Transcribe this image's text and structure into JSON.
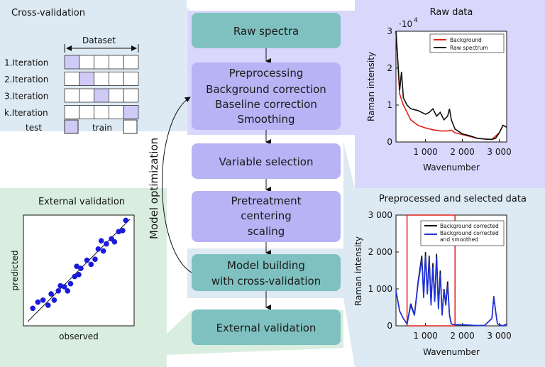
{
  "workflow": {
    "raw_spectra": "Raw spectra",
    "preprocessing": {
      "title": "Preprocessing",
      "steps": [
        "Background correction",
        "Baseline correction",
        "Smoothing"
      ]
    },
    "variable_selection": "Variable selection",
    "pretreatment": {
      "title": "Pretreatment",
      "steps": [
        "centering",
        "scaling"
      ]
    },
    "model_building": [
      "Model building",
      "with cross-validation"
    ],
    "external_validation": "External validation",
    "loop_label": "Model optimization"
  },
  "cross_validation": {
    "title": "Cross-validation",
    "dataset_label": "Dataset",
    "rows": [
      "1.Iteration",
      "2.Iteration",
      "3.Iteration",
      "k.Iteration"
    ],
    "test_column": [
      0,
      1,
      2,
      4
    ],
    "columns": 5,
    "legend_test": "test",
    "legend_train": "train"
  },
  "external_validation_panel": {
    "title": "External validation",
    "xlabel": "observed",
    "ylabel": "predicted"
  },
  "colors": {
    "teal_box": "#7fc1c0",
    "purple_box": "#b7b3f5",
    "purple_panel": "#d9d7fb",
    "green_panel": "#d9eedf",
    "blue_panel": "#dde9f3",
    "marker_blue": "#1a1adb",
    "test_fill": "#cfcaf6"
  },
  "chart_data": [
    {
      "type": "line",
      "title": "Raw data",
      "xlabel": "Wavenumber",
      "ylabel": "Raman intensity",
      "y_multiplier": "·10^4",
      "xlim": [
        200,
        3200
      ],
      "ylim": [
        0,
        3
      ],
      "xticks": [
        "1 000",
        "2 000",
        "3 000"
      ],
      "yticks": [
        "0",
        "1",
        "2",
        "3"
      ],
      "legend": "top-right",
      "series": [
        {
          "name": "Background",
          "color": "#e0201b",
          "x": [
            200,
            300,
            400,
            600,
            800,
            1000,
            1200,
            1400,
            1600,
            1700,
            1800,
            2000,
            2200,
            2400,
            2600,
            2800,
            3000,
            3100,
            3200
          ],
          "y": [
            3.0,
            1.3,
            1.0,
            0.6,
            0.45,
            0.38,
            0.33,
            0.3,
            0.3,
            0.32,
            0.25,
            0.2,
            0.15,
            0.1,
            0.08,
            0.07,
            0.25,
            0.45,
            0.4
          ]
        },
        {
          "name": "Raw spectrum",
          "color": "#111111",
          "x": [
            200,
            300,
            350,
            400,
            500,
            600,
            800,
            1000,
            1100,
            1200,
            1300,
            1400,
            1500,
            1600,
            1650,
            1700,
            1800,
            2000,
            2200,
            2400,
            2600,
            2800,
            2900,
            3000,
            3100,
            3200
          ],
          "y": [
            3.0,
            1.4,
            1.9,
            1.2,
            1.0,
            0.9,
            0.85,
            0.75,
            0.8,
            0.9,
            0.7,
            0.8,
            0.6,
            0.7,
            0.9,
            0.6,
            0.35,
            0.22,
            0.17,
            0.1,
            0.08,
            0.07,
            0.1,
            0.25,
            0.45,
            0.4
          ]
        }
      ]
    },
    {
      "type": "line",
      "title": "Preprocessed and selected data",
      "xlabel": "Wavenumber",
      "ylabel": "Raman intensity",
      "xlim": [
        200,
        3200
      ],
      "ylim": [
        0,
        3000
      ],
      "xticks": [
        "1 000",
        "2 000",
        "3 000"
      ],
      "yticks": [
        "0",
        "1 000",
        "2 000",
        "3 000"
      ],
      "legend": "top-right",
      "selection_window": [
        500,
        1800
      ],
      "series": [
        {
          "name": "Background corrected",
          "color": "#111111",
          "x": [
            200,
            300,
            400,
            500,
            600,
            700,
            800,
            900,
            950,
            1000,
            1050,
            1100,
            1150,
            1200,
            1250,
            1300,
            1350,
            1400,
            1450,
            1500,
            1550,
            1600,
            1650,
            1700,
            1800,
            2000,
            2200,
            2400,
            2600,
            2800,
            2850,
            2900,
            2950,
            3000,
            3100,
            3200
          ],
          "y": [
            950,
            400,
            200,
            50,
            600,
            300,
            1200,
            1900,
            800,
            2000,
            900,
            1900,
            600,
            1700,
            700,
            1950,
            500,
            1500,
            300,
            1000,
            600,
            1200,
            300,
            50,
            30,
            30,
            20,
            10,
            10,
            200,
            800,
            400,
            50,
            30,
            0,
            50
          ]
        },
        {
          "name": "Background corrected and smoothed",
          "color": "#2032e0",
          "x": [
            200,
            300,
            400,
            500,
            600,
            700,
            800,
            900,
            950,
            1000,
            1050,
            1100,
            1150,
            1200,
            1250,
            1300,
            1350,
            1400,
            1450,
            1500,
            1550,
            1600,
            1650,
            1700,
            1800,
            2000,
            2200,
            2400,
            2600,
            2800,
            2850,
            2900,
            2950,
            3000,
            3100,
            3200
          ],
          "y": [
            950,
            400,
            200,
            50,
            550,
            280,
            1150,
            1800,
            750,
            1900,
            850,
            1800,
            550,
            1600,
            650,
            1850,
            450,
            1400,
            280,
            950,
            550,
            1100,
            280,
            50,
            30,
            30,
            20,
            10,
            10,
            200,
            780,
            380,
            50,
            30,
            0,
            50
          ]
        }
      ]
    },
    {
      "type": "scatter",
      "title": "External validation",
      "xlabel": "observed",
      "ylabel": "predicted",
      "xlim": [
        0,
        10
      ],
      "ylim": [
        0,
        10
      ],
      "fit_line": [
        [
          0,
          0
        ],
        [
          10,
          10
        ]
      ],
      "points": [
        [
          0.5,
          1.3
        ],
        [
          1.0,
          1.9
        ],
        [
          1.5,
          2.1
        ],
        [
          2.0,
          1.6
        ],
        [
          2.6,
          2.1
        ],
        [
          3.0,
          3.0
        ],
        [
          3.2,
          3.5
        ],
        [
          3.6,
          3.4
        ],
        [
          4.2,
          3.7
        ],
        [
          4.6,
          4.4
        ],
        [
          5.0,
          4.6
        ],
        [
          5.2,
          5.2
        ],
        [
          5.8,
          6.0
        ],
        [
          6.2,
          5.6
        ],
        [
          6.6,
          6.1
        ],
        [
          6.9,
          7.1
        ],
        [
          7.4,
          6.9
        ],
        [
          7.7,
          7.6
        ],
        [
          8.2,
          8.1
        ],
        [
          8.5,
          7.8
        ],
        [
          8.9,
          8.8
        ],
        [
          9.3,
          8.9
        ],
        [
          9.6,
          9.9
        ],
        [
          4.8,
          5.4
        ],
        [
          3.9,
          3.0
        ],
        [
          7.2,
          7.9
        ],
        [
          2.3,
          2.7
        ]
      ]
    }
  ]
}
